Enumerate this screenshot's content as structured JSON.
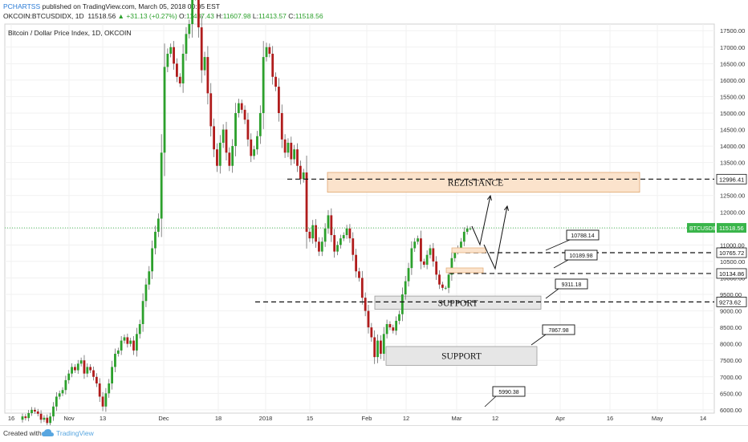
{
  "header": {
    "author": "PCHARTSS",
    "published_text": "published on TradingView.com, March 05, 2018 00:05 EST",
    "symbol": "OKCOIN:BTCUSDIDX, 1D",
    "last": "11518.56",
    "change": "▲ +31.13 (+0.27%)",
    "ohlc": {
      "o_label": "O:",
      "o": "11487.43",
      "h_label": "H:",
      "h": "11607.98",
      "l_label": "L:",
      "l": "11413.57",
      "c_label": "C:",
      "c": "11518.56"
    },
    "chart_title": "Bitcoin / Dollar Price Index, 1D, OKCOIN"
  },
  "footer": {
    "created_with": "Created with",
    "brand": "TradingView"
  },
  "colors": {
    "up": "#2ca02c",
    "down": "#b01c1c",
    "resistance_fill": "#fbe3cc",
    "support_fill": "#e6e6e6",
    "price_line": "#39b54a"
  },
  "chart_data": {
    "type": "candlestick",
    "x_tick_labels": [
      "16",
      "Nov",
      "13",
      "Dec",
      "18",
      "2018",
      "15",
      "Feb",
      "12",
      "Mar",
      "12",
      "Apr",
      "16",
      "May",
      "14"
    ],
    "y_tick_labels": [
      "6000.00",
      "6500.00",
      "7000.00",
      "7500.00",
      "8000.00",
      "8500.00",
      "9000.00",
      "9500.00",
      "10000.00",
      "10500.00",
      "11000.00",
      "11500.00",
      "12000.00",
      "12500.00",
      "13000.00",
      "13500.00",
      "14000.00",
      "14500.00",
      "15000.00",
      "15500.00",
      "16000.00",
      "16500.00",
      "17000.00",
      "17500.00"
    ],
    "y_range": [
      5900,
      17700
    ],
    "current_price": {
      "label": "BTCUSDIDX",
      "value": "11518.56"
    },
    "price_tags": [
      "12996.41",
      "10765.72",
      "10134.86",
      "9273.62"
    ],
    "callouts": [
      "10788.14",
      "10189.98",
      "9311.18",
      "7867.98",
      "5990.38"
    ],
    "zones": [
      {
        "label": "REZISTANCE",
        "low": 12600,
        "high": 13200
      },
      {
        "label": "SUPPORT",
        "low": 9050,
        "high": 9450
      },
      {
        "label": "SUPPORT",
        "low": 7350,
        "high": 7920
      }
    ],
    "horizontal_levels": [
      12996.41,
      10765.72,
      10134.86,
      9273.62
    ],
    "closes": [
      5800,
      5750,
      5900,
      6000,
      5950,
      5880,
      5700,
      5760,
      5600,
      5800,
      6100,
      6400,
      6500,
      6600,
      6900,
      7100,
      7300,
      7200,
      7400,
      7500,
      7100,
      7300,
      7200,
      7000,
      6800,
      6400,
      6100,
      6500,
      6800,
      7300,
      7700,
      7800,
      8100,
      8200,
      8000,
      8100,
      7800,
      8300,
      8600,
      9300,
      9800,
      10200,
      10900,
      11400,
      11800,
      13800,
      16400,
      16800,
      17000,
      16500,
      16100,
      15900,
      16800,
      17400,
      17700,
      19100,
      18600,
      17600,
      16300,
      16700,
      15600,
      14600,
      13900,
      13400,
      14100,
      14500,
      13800,
      13400,
      14000,
      15000,
      15300,
      15100,
      14800,
      14200,
      13700,
      13900,
      14300,
      15000,
      16700,
      17000,
      16800,
      16100,
      15800,
      15000,
      14200,
      13800,
      14100,
      13600,
      13900,
      13400,
      13000,
      13200,
      11400,
      11200,
      11600,
      11100,
      10800,
      11100,
      11500,
      11900,
      11300,
      10800,
      11000,
      11200,
      11300,
      11500,
      11200,
      10700,
      10200,
      10000,
      9400,
      9000,
      8500,
      8200,
      7600,
      8100,
      7700,
      8300,
      8600,
      8500,
      8400,
      8700,
      8900,
      9500,
      9900,
      10300,
      10900,
      11100,
      11200,
      10500,
      10400,
      10700,
      10900,
      10500,
      10100,
      9800,
      9700,
      9700,
      10100,
      10600,
      10800,
      10900,
      11100,
      11400,
      11500,
      11500
    ]
  }
}
